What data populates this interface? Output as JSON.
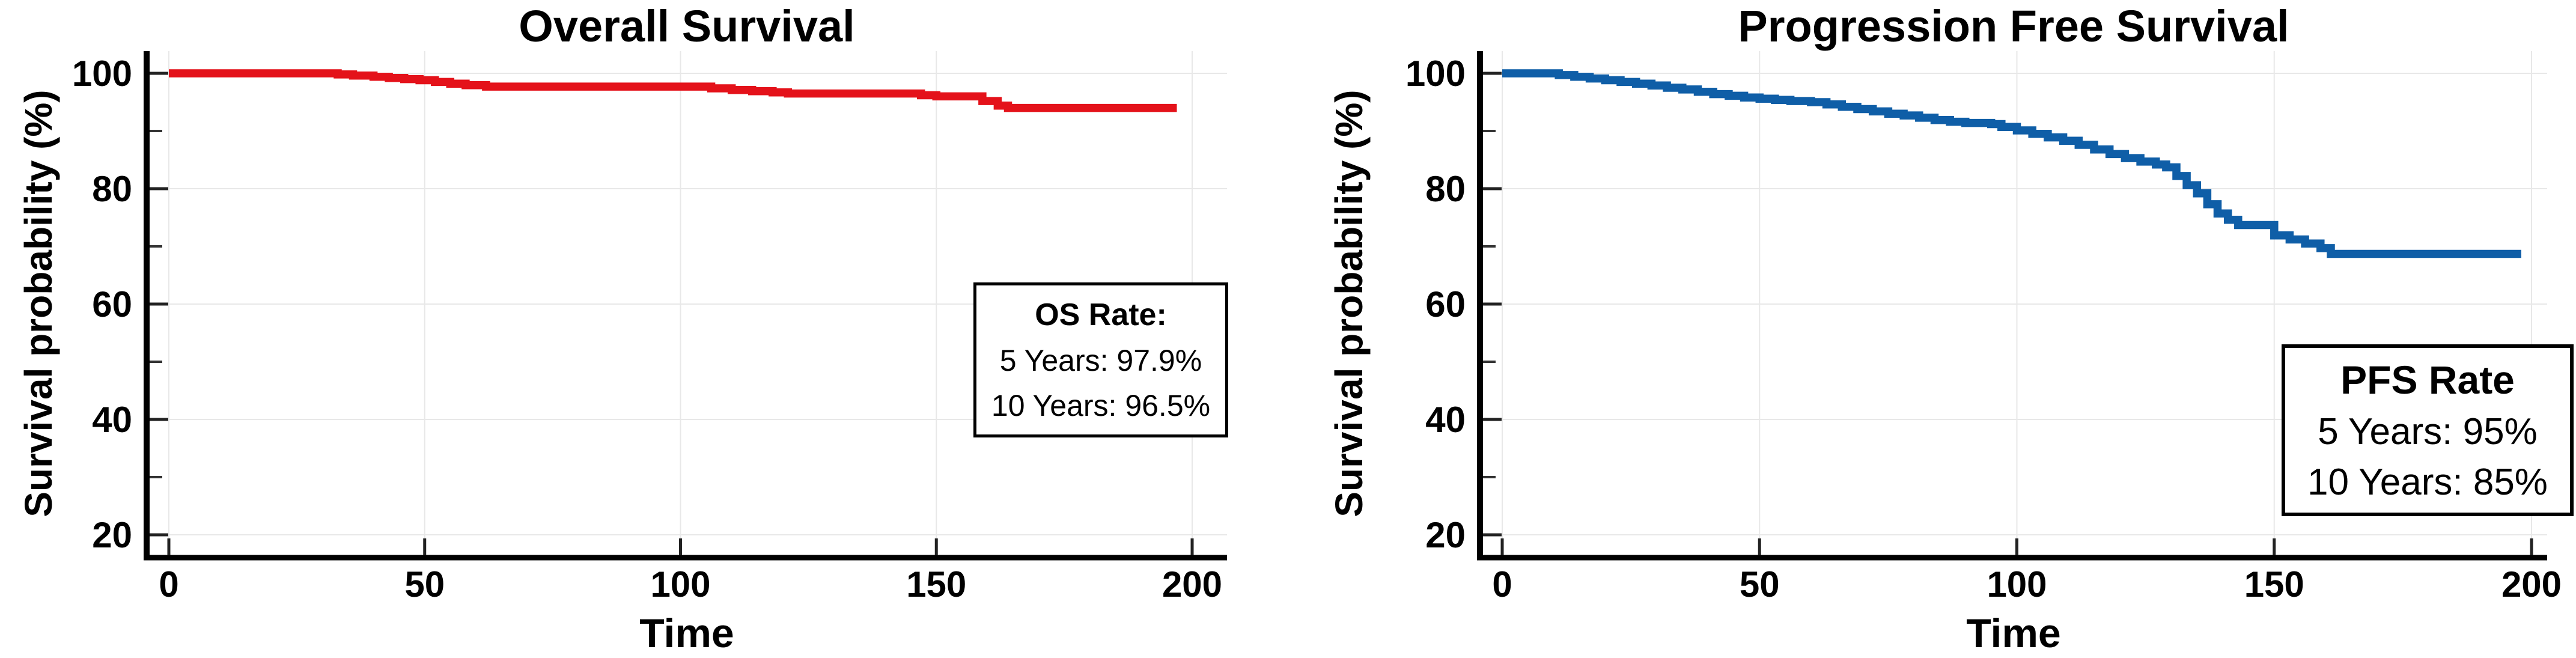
{
  "chart_data": [
    {
      "type": "line",
      "subtype": "kaplan-meier-step",
      "title": "Overall Survival",
      "xlabel": "Time",
      "ylabel": "Survival probability (%)",
      "line_color": "#e4121a",
      "grid": true,
      "grid_color": "#e8e8e8",
      "axis_color": "#000000",
      "xlim": [
        -4.3,
        206
      ],
      "ylim": [
        16,
        103.8
      ],
      "x_ticks": [
        0,
        50,
        100,
        150,
        200
      ],
      "y_ticks": [
        100,
        80,
        60,
        40,
        20
      ],
      "y_minor_ticks": [
        90,
        70,
        50,
        30
      ],
      "legend_position": "none",
      "annotation": {
        "title": "OS Rate:",
        "lines": [
          "5 Years: 97.9%",
          "10 Years: 96.5%"
        ]
      },
      "series": [
        {
          "name": "Overall Survival",
          "color": "#e4121a",
          "points": [
            [
              0,
              100
            ],
            [
              30,
              100
            ],
            [
              33,
              99.8
            ],
            [
              36,
              99.6
            ],
            [
              40,
              99.4
            ],
            [
              43,
              99.2
            ],
            [
              46,
              99.0
            ],
            [
              49,
              98.8
            ],
            [
              52,
              98.5
            ],
            [
              55,
              98.2
            ],
            [
              58,
              97.95
            ],
            [
              62,
              97.7
            ],
            [
              103,
              97.7
            ],
            [
              106,
              97.4
            ],
            [
              110,
              97.1
            ],
            [
              114,
              96.9
            ],
            [
              118,
              96.7
            ],
            [
              121,
              96.5
            ],
            [
              144,
              96.5
            ],
            [
              147,
              96.2
            ],
            [
              150,
              96.0
            ],
            [
              157,
              96.0
            ],
            [
              159,
              95.2
            ],
            [
              162,
              94.4
            ],
            [
              164,
              94.0
            ],
            [
              197,
              94.0
            ]
          ]
        }
      ]
    },
    {
      "type": "line",
      "subtype": "kaplan-meier-step",
      "title": "Progression Free Survival",
      "xlabel": "Time",
      "ylabel": "Survival probability (%)",
      "line_color": "#0f5ea7",
      "grid": true,
      "grid_color": "#e8e8e8",
      "axis_color": "#000000",
      "xlim": [
        -4.3,
        206
      ],
      "ylim": [
        16,
        103.8
      ],
      "x_ticks": [
        0,
        50,
        100,
        150,
        200
      ],
      "y_ticks": [
        100,
        80,
        60,
        40,
        20
      ],
      "y_minor_ticks": [
        90,
        70,
        50,
        30
      ],
      "legend_position": "none",
      "annotation": {
        "title": "PFS Rate",
        "lines": [
          "5 Years: 95%",
          "10 Years: 85%"
        ]
      },
      "series": [
        {
          "name": "Progression Free Survival",
          "color": "#0f5ea7",
          "points": [
            [
              0,
              100
            ],
            [
              8,
              100
            ],
            [
              11,
              99.7
            ],
            [
              14,
              99.4
            ],
            [
              17,
              99.1
            ],
            [
              20,
              98.8
            ],
            [
              23,
              98.5
            ],
            [
              26,
              98.2
            ],
            [
              29,
              97.9
            ],
            [
              32,
              97.5
            ],
            [
              35,
              97.2
            ],
            [
              38,
              96.8
            ],
            [
              41,
              96.4
            ],
            [
              44,
              96.1
            ],
            [
              47,
              95.8
            ],
            [
              50,
              95.6
            ],
            [
              53,
              95.4
            ],
            [
              56,
              95.2
            ],
            [
              60,
              95.0
            ],
            [
              63,
              94.6
            ],
            [
              66,
              94.2
            ],
            [
              69,
              93.8
            ],
            [
              72,
              93.4
            ],
            [
              75,
              93.0
            ],
            [
              78,
              92.7
            ],
            [
              81,
              92.3
            ],
            [
              84,
              91.9
            ],
            [
              87,
              91.6
            ],
            [
              90,
              91.4
            ],
            [
              95,
              91.2
            ],
            [
              97,
              90.7
            ],
            [
              100,
              90.1
            ],
            [
              103,
              89.5
            ],
            [
              106,
              88.9
            ],
            [
              109,
              88.3
            ],
            [
              112,
              87.6
            ],
            [
              115,
              86.8
            ],
            [
              118,
              86.0
            ],
            [
              121,
              85.3
            ],
            [
              124,
              84.7
            ],
            [
              127,
              84.2
            ],
            [
              129,
              83.7
            ],
            [
              131,
              82.2
            ],
            [
              133,
              80.6
            ],
            [
              135,
              79.2
            ],
            [
              137,
              77.3
            ],
            [
              139,
              75.7
            ],
            [
              141,
              74.6
            ],
            [
              143,
              73.7
            ],
            [
              148,
              73.7
            ],
            [
              150,
              71.9
            ],
            [
              153,
              71.2
            ],
            [
              156,
              70.5
            ],
            [
              159,
              69.7
            ],
            [
              161,
              68.7
            ],
            [
              198,
              68.7
            ]
          ]
        }
      ]
    }
  ]
}
